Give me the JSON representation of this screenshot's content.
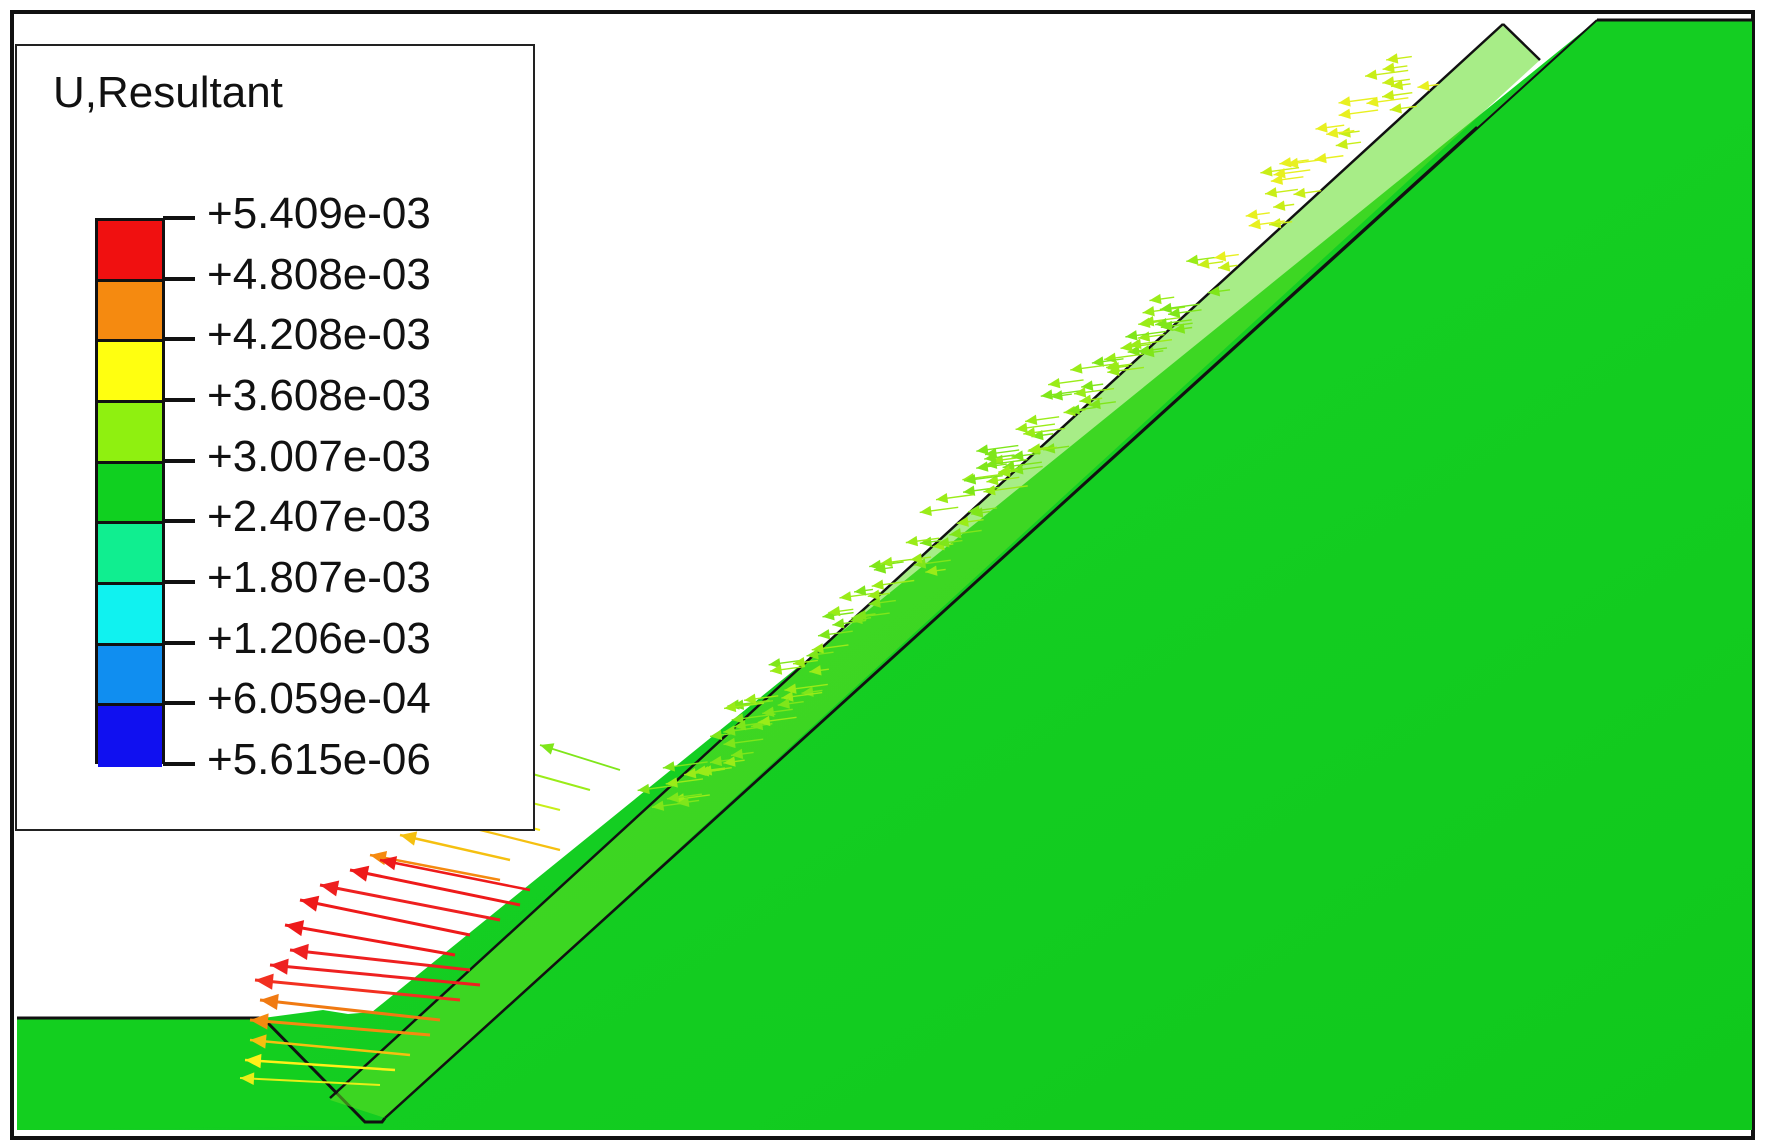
{
  "legend": {
    "title": "U,Resultant",
    "values": [
      "+5.409e-03",
      "+4.808e-03",
      "+4.208e-03",
      "+3.608e-03",
      "+3.007e-03",
      "+2.407e-03",
      "+1.807e-03",
      "+1.206e-03",
      "+6.059e-04",
      "+5.615e-06"
    ],
    "colors": [
      "#f01010",
      "#f58a10",
      "#ffff10",
      "#8ff010",
      "#10d020",
      "#10ee90",
      "#10f2f0",
      "#108ef0",
      "#1010f0"
    ]
  },
  "model": {
    "body_color": "#13cf1f",
    "edge_color": "#111111"
  }
}
